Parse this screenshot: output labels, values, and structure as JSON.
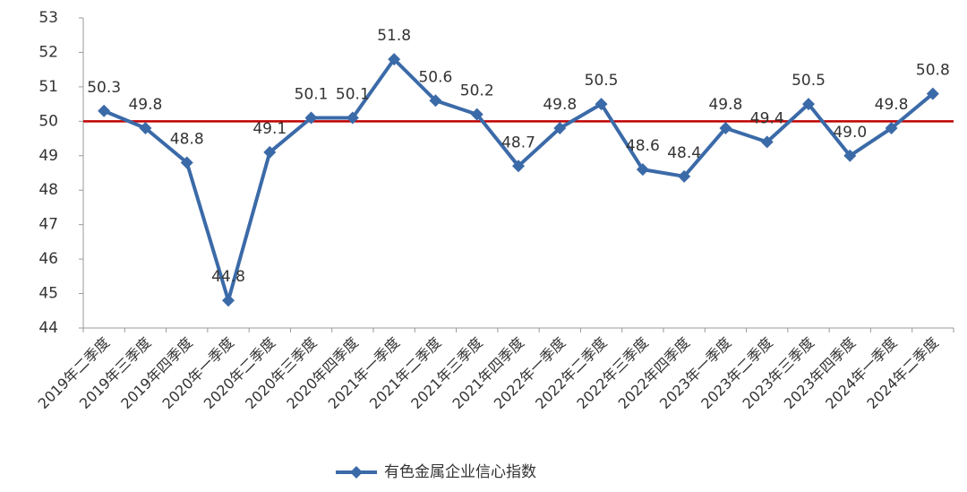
{
  "chart_data": {
    "type": "line",
    "categories": [
      "2019年二季度",
      "2019年三季度",
      "2019年四季度",
      "2020年一季度",
      "2020年二季度",
      "2020年三季度",
      "2020年四季度",
      "2021年一季度",
      "2021年二季度",
      "2021年三季度",
      "2021年四季度",
      "2022年一季度",
      "2022年二季度",
      "2022年三季度",
      "2022年四季度",
      "2023年一季度",
      "2023年二季度",
      "2023年三季度",
      "2023年四季度",
      "2024年一季度",
      "2024年二季度"
    ],
    "series": [
      {
        "name": "有色金属企业信心指数",
        "color": "#3b6aa8",
        "values": [
          50.3,
          49.8,
          48.8,
          44.8,
          49.1,
          50.1,
          50.1,
          51.8,
          50.6,
          50.2,
          48.7,
          49.8,
          50.5,
          48.6,
          48.4,
          49.8,
          49.4,
          50.5,
          49.0,
          49.8,
          50.8
        ],
        "value_labels": [
          "50.3",
          "49.8",
          "48.8",
          "44.8",
          "49.1",
          "50.1",
          "50.1",
          "51.8",
          "50.6",
          "50.2",
          "48.7",
          "49.8",
          "50.5",
          "48.6",
          "48.4",
          "49.8",
          "49.4",
          "50.5",
          "49.0",
          "49.8",
          "50.8"
        ]
      }
    ],
    "reference_line": {
      "value": 50,
      "color": "#c00000"
    },
    "ylim": [
      44,
      53
    ],
    "yticks": [
      44,
      45,
      46,
      47,
      48,
      49,
      50,
      51,
      52,
      53
    ],
    "grid": false,
    "legend": "bottom"
  }
}
